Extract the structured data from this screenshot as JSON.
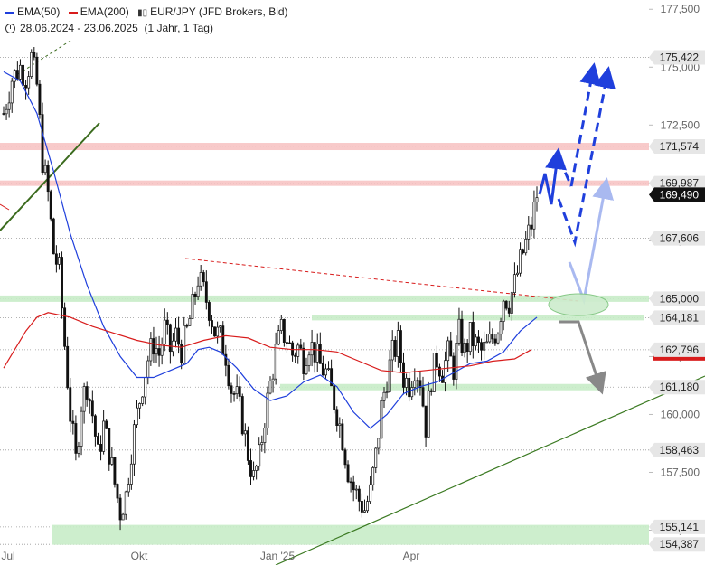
{
  "legend": {
    "ema50_label": "EMA(50)",
    "ema200_label": "EMA(200)",
    "symbol": "EUR/JPY (JFD Brokers, Bid)",
    "range": "28.06.2024 - 23.06.2025",
    "period": "(1 Jahr, 1 Tag)",
    "ema50_color": "#1f3fdc",
    "ema200_color": "#d81c1c"
  },
  "chart_data": {
    "type": "candlestick",
    "title": "",
    "xlabel": "",
    "ylabel": "",
    "x_ticks": [
      "Jul",
      "Okt",
      "Jan '25",
      "Apr"
    ],
    "y_ticks": [
      "177,500",
      "175,000",
      "172,500",
      "170,000",
      "167,500",
      "165,000",
      "162,500",
      "160,000",
      "157,500",
      "155,000"
    ],
    "ylim": [
      154.2,
      177.9
    ],
    "current_price": "169,490",
    "levels": [
      {
        "value": 175.422,
        "label": "175,422"
      },
      {
        "value": 171.574,
        "label": "171,574"
      },
      {
        "value": 169.987,
        "label": "169,987"
      },
      {
        "value": 167.606,
        "label": "167,606"
      },
      {
        "value": 165.0,
        "label": "165,000"
      },
      {
        "value": 164.181,
        "label": "164,181"
      },
      {
        "value": 162.796,
        "label": "162,796"
      },
      {
        "value": 161.18,
        "label": "161,180"
      },
      {
        "value": 158.463,
        "label": "158,463"
      },
      {
        "value": 155.141,
        "label": "155,141"
      },
      {
        "value": 154.387,
        "label": "154,387"
      }
    ],
    "close_path": [
      [
        0,
        173.0
      ],
      [
        3,
        174.5
      ],
      [
        6,
        175.0
      ],
      [
        8,
        174.6
      ],
      [
        10,
        175.4
      ],
      [
        12,
        174.2
      ],
      [
        14,
        171.0
      ],
      [
        16,
        169.5
      ],
      [
        18,
        167.0
      ],
      [
        20,
        166.2
      ],
      [
        22,
        163.0
      ],
      [
        24,
        160.0
      ],
      [
        26,
        158.0
      ],
      [
        28,
        160.5
      ],
      [
        30,
        161.3
      ],
      [
        32,
        160.0
      ],
      [
        34,
        158.2
      ],
      [
        36,
        159.5
      ],
      [
        38,
        158.4
      ],
      [
        40,
        157.0
      ],
      [
        42,
        155.8
      ],
      [
        44,
        156.5
      ],
      [
        46,
        158.5
      ],
      [
        48,
        160.0
      ],
      [
        50,
        161.3
      ],
      [
        52,
        162.4
      ],
      [
        54,
        163.1
      ],
      [
        56,
        162.6
      ],
      [
        58,
        163.7
      ],
      [
        60,
        162.8
      ],
      [
        62,
        163.4
      ],
      [
        64,
        162.8
      ],
      [
        66,
        163.6
      ],
      [
        68,
        164.6
      ],
      [
        70,
        165.9
      ],
      [
        72,
        165.3
      ],
      [
        74,
        164.6
      ],
      [
        76,
        163.6
      ],
      [
        78,
        163.3
      ],
      [
        80,
        162.6
      ],
      [
        82,
        161.1
      ],
      [
        84,
        160.7
      ],
      [
        86,
        159.7
      ],
      [
        88,
        158.3
      ],
      [
        90,
        157.2
      ],
      [
        92,
        158.1
      ],
      [
        94,
        159.9
      ],
      [
        96,
        161.3
      ],
      [
        98,
        162.7
      ],
      [
        100,
        163.6
      ],
      [
        102,
        163.3
      ],
      [
        104,
        162.6
      ],
      [
        106,
        162.9
      ],
      [
        108,
        162.4
      ],
      [
        110,
        163.1
      ],
      [
        112,
        162.7
      ],
      [
        114,
        162.1
      ],
      [
        116,
        161.8
      ],
      [
        118,
        161.0
      ],
      [
        120,
        160.1
      ],
      [
        122,
        159.0
      ],
      [
        124,
        157.6
      ],
      [
        126,
        156.8
      ],
      [
        128,
        156.3
      ],
      [
        130,
        155.9
      ],
      [
        132,
        156.6
      ],
      [
        134,
        158.2
      ],
      [
        136,
        160.3
      ],
      [
        138,
        161.6
      ],
      [
        140,
        162.6
      ],
      [
        142,
        163.1
      ],
      [
        144,
        161.6
      ],
      [
        146,
        161.3
      ],
      [
        148,
        162.1
      ],
      [
        150,
        161.5
      ],
      [
        152,
        159.5
      ],
      [
        154,
        161.6
      ],
      [
        156,
        162.4
      ],
      [
        158,
        161.9
      ],
      [
        160,
        162.6
      ],
      [
        162,
        162.0
      ],
      [
        164,
        163.5
      ],
      [
        166,
        162.7
      ],
      [
        168,
        163.4
      ],
      [
        170,
        163.0
      ],
      [
        172,
        162.7
      ],
      [
        174,
        162.9
      ],
      [
        176,
        163.3
      ],
      [
        178,
        163.8
      ],
      [
        180,
        165.1
      ],
      [
        182,
        164.9
      ],
      [
        184,
        165.6
      ],
      [
        186,
        166.6
      ],
      [
        188,
        167.4
      ],
      [
        190,
        168.2
      ],
      [
        192,
        169.5
      ]
    ],
    "ema50": [
      [
        0,
        174.8
      ],
      [
        6,
        174.4
      ],
      [
        12,
        173.0
      ],
      [
        18,
        170.5
      ],
      [
        24,
        167.8
      ],
      [
        30,
        165.6
      ],
      [
        36,
        163.8
      ],
      [
        42,
        162.5
      ],
      [
        48,
        161.6
      ],
      [
        54,
        161.6
      ],
      [
        60,
        161.9
      ],
      [
        66,
        162.2
      ],
      [
        70,
        162.8
      ],
      [
        74,
        162.9
      ],
      [
        78,
        162.7
      ],
      [
        84,
        162.0
      ],
      [
        90,
        161.1
      ],
      [
        96,
        160.6
      ],
      [
        102,
        160.8
      ],
      [
        108,
        161.4
      ],
      [
        114,
        161.7
      ],
      [
        120,
        161.2
      ],
      [
        126,
        160.1
      ],
      [
        132,
        159.4
      ],
      [
        138,
        160.0
      ],
      [
        144,
        160.9
      ],
      [
        150,
        161.2
      ],
      [
        156,
        161.4
      ],
      [
        162,
        161.8
      ],
      [
        168,
        162.2
      ],
      [
        174,
        162.3
      ],
      [
        180,
        162.7
      ],
      [
        186,
        163.6
      ],
      [
        192,
        164.2
      ]
    ],
    "ema200": [
      [
        0,
        162.0
      ],
      [
        4,
        162.8
      ],
      [
        8,
        163.6
      ],
      [
        12,
        164.2
      ],
      [
        16,
        164.4
      ],
      [
        24,
        164.2
      ],
      [
        32,
        163.8
      ],
      [
        40,
        163.5
      ],
      [
        48,
        163.2
      ],
      [
        56,
        163.0
      ],
      [
        64,
        162.9
      ],
      [
        72,
        163.2
      ],
      [
        80,
        163.4
      ],
      [
        88,
        163.3
      ],
      [
        96,
        162.9
      ],
      [
        104,
        162.8
      ],
      [
        112,
        162.8
      ],
      [
        120,
        162.7
      ],
      [
        128,
        162.3
      ],
      [
        136,
        161.9
      ],
      [
        144,
        161.8
      ],
      [
        152,
        161.9
      ],
      [
        160,
        162.0
      ],
      [
        168,
        162.1
      ],
      [
        176,
        162.3
      ],
      [
        184,
        162.4
      ],
      [
        190,
        162.8
      ]
    ],
    "annotations": [
      {
        "type": "support-zone",
        "value": 165.0
      },
      {
        "type": "support-zone",
        "value": 164.181
      },
      {
        "type": "support-zone",
        "value": 161.18
      },
      {
        "type": "support-zone",
        "value": 154.8
      },
      {
        "type": "resistance-zone",
        "value": 171.574
      },
      {
        "type": "resistance-zone",
        "value": 169.987
      },
      {
        "type": "scenario-bull",
        "color": "#1f3fdc"
      },
      {
        "type": "scenario-pullback",
        "color": "#a9b9f0"
      },
      {
        "type": "scenario-bear",
        "color": "#888888"
      }
    ]
  }
}
